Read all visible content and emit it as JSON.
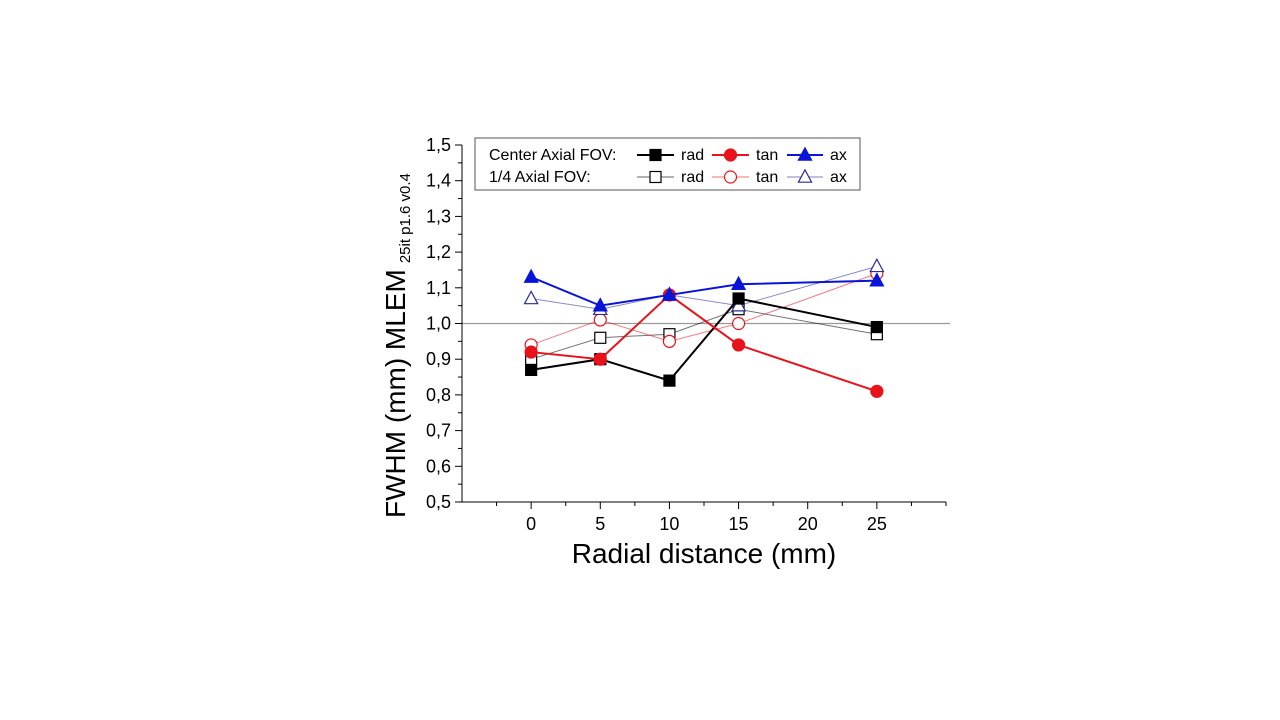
{
  "chart_data": {
    "type": "line",
    "xlabel": "Radial distance (mm)",
    "ylabel": "FWHM (mm) MLEM",
    "ylabel_subscript": "25it p1.6 v0.4",
    "xlim": [
      -5,
      30
    ],
    "ylim": [
      0.5,
      1.5
    ],
    "x_ticks": [
      0,
      5,
      10,
      15,
      20,
      25
    ],
    "y_ticks": [
      0.5,
      0.6,
      0.7,
      0.8,
      0.9,
      1.0,
      1.1,
      1.2,
      1.3,
      1.4,
      1.5
    ],
    "x_tick_labels": [
      "0",
      "5",
      "10",
      "15",
      "20",
      "25"
    ],
    "y_tick_labels": [
      "0,5",
      "0,6",
      "0,7",
      "0,8",
      "0,9",
      "1,0",
      "1,1",
      "1,2",
      "1,3",
      "1,4",
      "1,5"
    ],
    "reference_line": 1.0,
    "legend": {
      "placement": "top",
      "group_labels": [
        "Center Axial FOV:",
        "1/4 Axial FOV:"
      ]
    },
    "series": [
      {
        "name": "rad",
        "group": "Center Axial FOV:",
        "marker": "square",
        "filled": true,
        "color": "#000000",
        "x": [
          0,
          5,
          10,
          15,
          25
        ],
        "y": [
          0.87,
          0.9,
          0.84,
          1.07,
          0.99
        ]
      },
      {
        "name": "tan",
        "group": "Center Axial FOV:",
        "marker": "circle",
        "filled": true,
        "color": "#e8131a",
        "x": [
          0,
          5,
          10,
          15,
          25
        ],
        "y": [
          0.92,
          0.9,
          1.08,
          0.94,
          0.81
        ]
      },
      {
        "name": "ax",
        "group": "Center Axial FOV:",
        "marker": "triangle",
        "filled": true,
        "color": "#0a14d8",
        "x": [
          0,
          5,
          10,
          15,
          25
        ],
        "y": [
          1.13,
          1.05,
          1.08,
          1.11,
          1.12
        ]
      },
      {
        "name": "rad",
        "group": "1/4 Axial FOV:",
        "marker": "square",
        "filled": false,
        "color": "#000000",
        "x": [
          0,
          5,
          10,
          15,
          25
        ],
        "y": [
          0.9,
          0.96,
          0.97,
          1.04,
          0.97
        ]
      },
      {
        "name": "tan",
        "group": "1/4 Axial FOV:",
        "marker": "circle",
        "filled": false,
        "color": "#e8131a",
        "x": [
          0,
          5,
          10,
          15,
          25
        ],
        "y": [
          0.94,
          1.01,
          0.95,
          1.0,
          1.14
        ]
      },
      {
        "name": "ax",
        "group": "1/4 Axial FOV:",
        "marker": "triangle",
        "filled": false,
        "color": "#2a2a9a",
        "x": [
          0,
          5,
          10,
          15,
          25
        ],
        "y": [
          1.07,
          1.04,
          1.08,
          1.05,
          1.16
        ]
      }
    ]
  }
}
